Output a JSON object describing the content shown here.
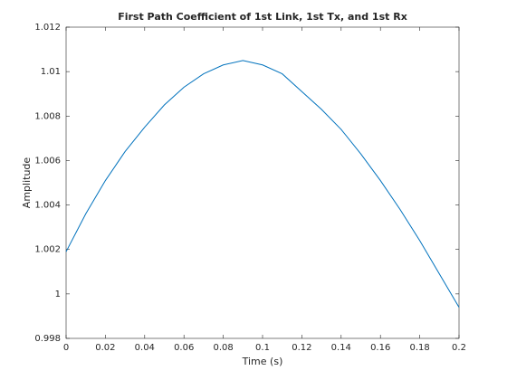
{
  "chart_data": {
    "type": "line",
    "title": "First Path Coefficient of 1st Link, 1st Tx, and 1st Rx",
    "x_label": "Time (s)",
    "y_label": "Amplitude",
    "x": [
      0,
      0.01,
      0.02,
      0.03,
      0.04,
      0.05,
      0.06,
      0.07,
      0.08,
      0.09,
      0.1,
      0.11,
      0.12,
      0.13,
      0.14,
      0.15,
      0.16,
      0.17,
      0.18,
      0.19,
      0.2
    ],
    "series": [
      {
        "color": "#0072bd",
        "values": [
          1.0019,
          1.0036,
          1.0051,
          1.0064,
          1.0075,
          1.0085,
          1.0093,
          1.0099,
          1.0103,
          1.0105,
          1.0103,
          1.0099,
          1.0091,
          1.0083,
          1.0074,
          1.0063,
          1.0051,
          1.0038,
          1.0024,
          1.0009,
          0.9994
        ]
      }
    ],
    "xlim": [
      0,
      0.2
    ],
    "xticks": [
      0,
      0.02,
      0.04,
      0.06,
      0.08,
      0.1,
      0.12,
      0.14,
      0.16,
      0.18,
      0.2
    ],
    "ylim": [
      0.998,
      1.012
    ],
    "yticks": [
      0.998,
      1,
      1.002,
      1.004,
      1.006,
      1.008,
      1.01,
      1.012
    ]
  }
}
